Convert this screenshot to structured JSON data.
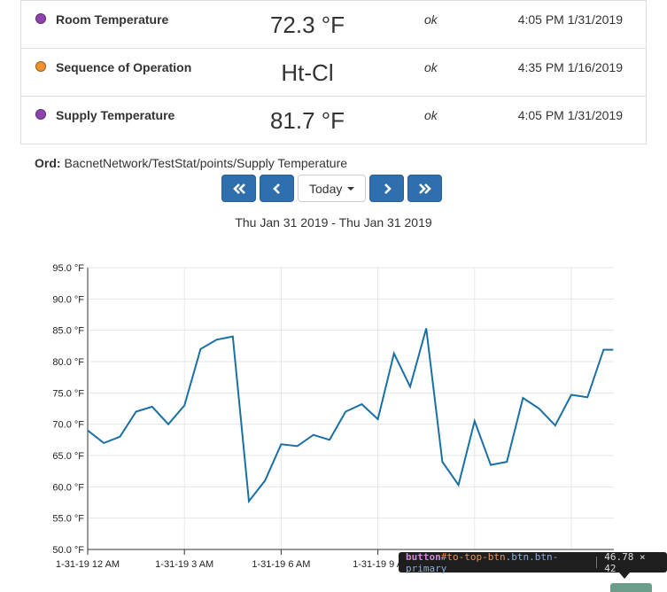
{
  "points": [
    {
      "name": "Room Temperature",
      "value": "72.3 °F",
      "status": "ok",
      "timestamp": "4:05 PM 1/31/2019",
      "dot_color": "#8e44ad"
    },
    {
      "name": "Sequence of Operation",
      "value": "Ht-Cl",
      "status": "ok",
      "timestamp": "4:35 PM 1/16/2019",
      "dot_color": "#f0902e"
    },
    {
      "name": "Supply Temperature",
      "value": "81.7 °F",
      "status": "ok",
      "timestamp": "4:05 PM 1/31/2019",
      "dot_color": "#8e44ad"
    }
  ],
  "ord": {
    "label": "Ord:",
    "path": "BacnetNetwork/TestStat/points/Supply Temperature"
  },
  "nav": {
    "first_icon": "double-chevron-left-icon",
    "prev_icon": "chevron-left-icon",
    "range_label": "Today",
    "next_icon": "chevron-right-icon",
    "last_icon": "double-chevron-right-icon",
    "button_color": "#2f6fad"
  },
  "date_range": "Thu Jan 31 2019 - Thu Jan 31 2019",
  "chart_data": {
    "type": "line",
    "title": "",
    "xlabel": "",
    "ylabel": "",
    "y_tick_labels": [
      "95.0 °F",
      "90.0 °F",
      "85.0 °F",
      "80.0 °F",
      "75.0 °F",
      "70.0 °F",
      "65.0 °F",
      "60.0 °F",
      "55.0 °F",
      "50.0 °F"
    ],
    "x_tick_labels": [
      "1-31-19 12 AM",
      "1-31-19 3 AM",
      "1-31-19 6 AM",
      "1-31-19 9 A"
    ],
    "ylim": [
      48,
      95
    ],
    "xlim_hours": [
      0,
      16.3
    ],
    "grid": true,
    "line_color": "#1a6fa3",
    "series": [
      {
        "x_hours": [
          0.0,
          0.5,
          1.0,
          1.5,
          2.0,
          2.5,
          3.0,
          3.5,
          4.0,
          4.5,
          5.0,
          5.5,
          6.0,
          6.5,
          7.0,
          7.5,
          8.0,
          8.5,
          9.0,
          9.5,
          10.0,
          10.5,
          11.0,
          11.5,
          12.0,
          12.5,
          13.0,
          13.5,
          14.0,
          14.5,
          15.0,
          15.5,
          16.0,
          16.3
        ],
        "values": [
          69.0,
          67.0,
          68.0,
          72.0,
          72.8,
          70.0,
          73.0,
          82.0,
          83.5,
          84.0,
          57.7,
          61.0,
          66.8,
          66.5,
          68.3,
          67.5,
          72.0,
          73.2,
          70.8,
          81.3,
          76.0,
          85.3,
          64.0,
          60.3,
          70.5,
          63.5,
          64.0,
          74.2,
          72.5,
          69.8,
          74.7,
          74.3,
          81.9,
          81.9
        ]
      }
    ]
  },
  "devtools_tooltip": {
    "tag": "button",
    "id": "#to-top-btn",
    "classes": ".btn.btn-primary",
    "size": "46.78 × 42"
  }
}
